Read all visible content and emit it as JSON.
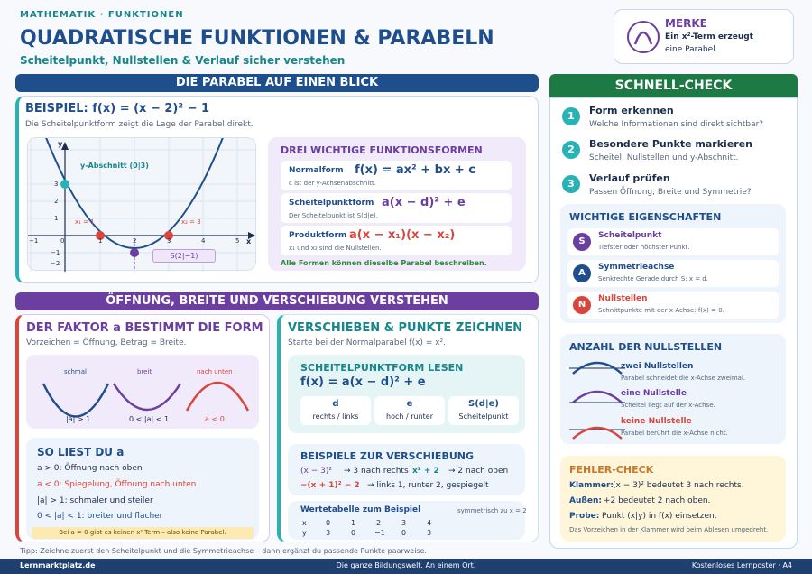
{
  "header": {
    "kicker": "MATHEMATIK · FUNKTIONEN",
    "title": "QUADRATISCHE FUNKTIONEN & PARABELN",
    "subtitle": "Scheitelpunkt, Nullstellen & Verlauf sicher verstehen"
  },
  "merke": {
    "title": "MERKE",
    "text1": "Ein x²-Term erzeugt",
    "text2": "eine Parabel."
  },
  "section1": {
    "bar": "DIE PARABEL AUF EINEN BLICK",
    "example_title": "BEISPIEL: f(x) = (x − 2)² − 1",
    "example_desc": "Die Scheitelpunktform zeigt die Lage der Parabel direkt.",
    "graph": {
      "y_label": "y",
      "x_label": "x",
      "y_intercept": "y-Abschnitt (0|3)",
      "x1": "x₁ = 1",
      "x2": "x₂ = 3",
      "vertex": "S(2|−1)",
      "x_ticks": [
        "−1",
        "0",
        "1",
        "2",
        "3",
        "4",
        "5"
      ],
      "y_ticks": [
        "3",
        "2",
        "1",
        "−1",
        "−2"
      ]
    },
    "forms": {
      "title": "DREI WICHTIGE FUNKTIONSFORMEN",
      "items": [
        {
          "name": "Normalform",
          "formula": "f(x) = ax² + bx + c",
          "note": "c ist der y-Achsenabschnitt."
        },
        {
          "name": "Scheitelpunktform",
          "formula": "a(x − d)² + e",
          "note": "Der Scheitelpunkt ist S(d|e)."
        },
        {
          "name": "Produktform",
          "formula": "a(x − x₁)(x − x₂)",
          "note": "x₁ und x₂ sind die Nullstellen."
        }
      ],
      "footer": "Alle Formen können dieselbe Parabel beschreiben."
    }
  },
  "section2": {
    "bar": "ÖFFNUNG, BREITE UND VERSCHIEBUNG VERSTEHEN",
    "factor": {
      "title": "DER FAKTOR a BESTIMMT DIE FORM",
      "desc": "Vorzeichen = Öffnung, Betrag = Breite.",
      "curves": [
        {
          "label": "schmal",
          "cond": "|a| > 1"
        },
        {
          "label": "breit",
          "cond": "0 < |a| < 1"
        },
        {
          "label": "nach unten",
          "cond": "a < 0"
        }
      ],
      "read_title": "SO LIEST DU a",
      "rules": [
        "a > 0: Öffnung nach oben",
        "a < 0: Spiegelung, Öffnung nach unten",
        "|a| > 1: schmaler und steiler",
        "0 < |a| < 1: breiter und flacher"
      ],
      "note": "Bei a = 0 gibt es keinen x²-Term – also keine Parabel."
    },
    "shift": {
      "title": "VERSCHIEBEN & PUNKTE ZEICHNEN",
      "desc": "Starte bei der Normalparabel f(x) = x².",
      "read_title": "SCHEITELPUNKTFORM LESEN",
      "formula": "f(x) = a(x − d)² + e",
      "params": [
        {
          "sym": "d",
          "desc": "rechts / links"
        },
        {
          "sym": "e",
          "desc": "hoch / runter"
        },
        {
          "sym": "S(d|e)",
          "desc": "Scheitelpunkt"
        }
      ],
      "examples_title": "BEISPIELE ZUR VERSCHIEBUNG",
      "ex1a": "(x − 3)²",
      "ex1b": "→ 3 nach rechts",
      "ex2a": "x² + 2",
      "ex2b": "→ 2 nach oben",
      "ex3a": "−(x + 1)² − 2",
      "ex3b": "→ links 1, runter 2, gespiegelt",
      "table_title": "Wertetabelle zum Beispiel",
      "table_note": "symmetrisch zu x = 2",
      "table_x": [
        "x",
        "0",
        "1",
        "2",
        "3",
        "4"
      ],
      "table_y": [
        "y",
        "3",
        "0",
        "−1",
        "0",
        "3"
      ]
    }
  },
  "tip": "Tipp: Zeichne zuerst den Scheitelpunkt und die Symmetrieachse – dann ergänzt du passende Punkte paarweise.",
  "sidebar": {
    "bar": "SCHNELL-CHECK",
    "steps": [
      {
        "n": "1",
        "title": "Form erkennen",
        "desc": "Welche Informationen sind direkt sichtbar?"
      },
      {
        "n": "2",
        "title": "Besondere Punkte markieren",
        "desc": "Scheitel, Nullstellen und y-Abschnitt."
      },
      {
        "n": "3",
        "title": "Verlauf prüfen",
        "desc": "Passen Öffnung, Breite und Symmetrie?"
      }
    ],
    "props_title": "WICHTIGE EIGENSCHAFTEN",
    "props": [
      {
        "letter": "S",
        "title": "Scheitelpunkt",
        "desc": "Tiefster oder höchster Punkt.",
        "color": "#6b3fa0"
      },
      {
        "letter": "A",
        "title": "Symmetrieachse",
        "desc": "Senkrechte Gerade durch S: x = d.",
        "color": "#1f4e8c"
      },
      {
        "letter": "N",
        "title": "Nullstellen",
        "desc": "Schnittpunkte mit der x-Achse: f(x) = 0.",
        "color": "#d9443b"
      }
    ],
    "zeros_title": "ANZAHL DER NULLSTELLEN",
    "zeros": [
      {
        "title": "zwei Nullstellen",
        "desc": "Parabel schneidet die x-Achse zweimal."
      },
      {
        "title": "eine Nullstelle",
        "desc": "Scheitel liegt auf der x-Achse."
      },
      {
        "title": "keine Nullstelle",
        "desc": "Parabel berührt die x-Achse nicht."
      }
    ],
    "errors_title": "FEHLER-CHECK",
    "err1a": "Klammer:",
    "err1b": "(x − 3)² bedeutet 3 nach rechts.",
    "err2a": "Außen:",
    "err2b": "+2 bedeutet 2 nach oben.",
    "err3a": "Probe:",
    "err3b": "Punkt (x|y) in f(x) einsetzen.",
    "err_note": "Das Vorzeichen in der Klammer wird beim Ablesen umgedreht."
  },
  "footer": {
    "left": "Lernmarktplatz.de",
    "center": "Die ganze Bildungswelt. An einem Ort.",
    "right": "Kostenloses Lernposter · A4"
  }
}
